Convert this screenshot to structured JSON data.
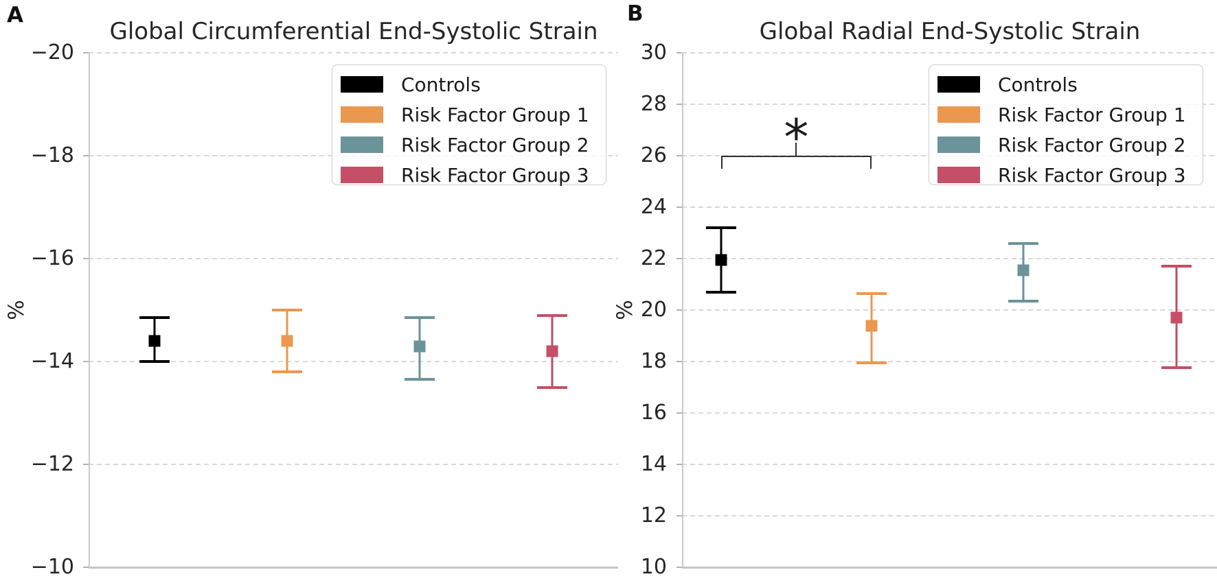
{
  "legend": {
    "entries": [
      {
        "label": "Controls",
        "color": "#000000"
      },
      {
        "label": "Risk Factor Group 1",
        "color": "#EA9850"
      },
      {
        "label": "Risk Factor Group 2",
        "color": "#6B939A"
      },
      {
        "label": "Risk Factor Group 3",
        "color": "#C44F66"
      }
    ]
  },
  "style_colors": {
    "grid": "#d9d9d9",
    "spine": "#c6c6c6",
    "text": "#262626",
    "significance": "#2f2f2f"
  },
  "chart_data": [
    {
      "type": "scatter",
      "panel_label": "A",
      "title": "Global Circumferential End-Systolic Strain",
      "xlabel": "",
      "ylabel": "%",
      "ylim": [
        -20,
        -10
      ],
      "y_inverted": true,
      "grid": true,
      "legend_position": "upper right",
      "yticks": [
        {
          "value": -20,
          "label": "−20"
        },
        {
          "value": -18,
          "label": "−18"
        },
        {
          "value": -16,
          "label": "−16"
        },
        {
          "value": -14,
          "label": "−14"
        },
        {
          "value": -12,
          "label": "−12"
        },
        {
          "value": -10,
          "label": "−10"
        }
      ],
      "series": [
        {
          "name": "Controls",
          "color": "#000000",
          "x": 1,
          "x_frac": 0.125,
          "mean": -14.4,
          "ci": [
            -14.85,
            -14.0
          ]
        },
        {
          "name": "Risk Factor Group 1",
          "color": "#EA9850",
          "x": 2,
          "x_frac": 0.375,
          "mean": -14.4,
          "ci": [
            -15.0,
            -13.8
          ]
        },
        {
          "name": "Risk Factor Group 2",
          "color": "#6B939A",
          "x": 3,
          "x_frac": 0.625,
          "mean": -14.3,
          "ci": [
            -14.85,
            -13.65
          ]
        },
        {
          "name": "Risk Factor Group 3",
          "color": "#C44F66",
          "x": 4,
          "x_frac": 0.875,
          "mean": -14.2,
          "ci": [
            -14.9,
            -13.5
          ]
        }
      ]
    },
    {
      "type": "scatter",
      "panel_label": "B",
      "title": "Global Radial End-Systolic Strain",
      "xlabel": "",
      "ylabel": "%",
      "ylim": [
        10,
        30
      ],
      "y_inverted": false,
      "grid": true,
      "legend_position": "upper right",
      "yticks": [
        {
          "value": 30,
          "label": "30"
        },
        {
          "value": 28,
          "label": "28"
        },
        {
          "value": 26,
          "label": "26"
        },
        {
          "value": 24,
          "label": "24"
        },
        {
          "value": 22,
          "label": "22"
        },
        {
          "value": 20,
          "label": "20"
        },
        {
          "value": 18,
          "label": "18"
        },
        {
          "value": 16,
          "label": "16"
        },
        {
          "value": 14,
          "label": "14"
        },
        {
          "value": 12,
          "label": "12"
        },
        {
          "value": 10,
          "label": "10"
        }
      ],
      "series": [
        {
          "name": "Controls",
          "color": "#000000",
          "x": 1,
          "x_frac": 0.073,
          "mean": 21.95,
          "ci": [
            20.7,
            23.2
          ]
        },
        {
          "name": "Risk Factor Group 1",
          "color": "#EA9850",
          "x": 2,
          "x_frac": 0.354,
          "mean": 19.4,
          "ci": [
            17.95,
            20.65
          ]
        },
        {
          "name": "Risk Factor Group 2",
          "color": "#6B939A",
          "x": 3,
          "x_frac": 0.638,
          "mean": 21.55,
          "ci": [
            20.35,
            22.6
          ]
        },
        {
          "name": "Risk Factor Group 3",
          "color": "#C44F66",
          "x": 4,
          "x_frac": 0.924,
          "mean": 19.7,
          "ci": [
            17.75,
            21.7
          ]
        }
      ],
      "significance": {
        "symbol": "*",
        "between": [
          "Controls",
          "Risk Factor Group 1"
        ],
        "bar_y": 26.0,
        "end_drop_to": 25.5,
        "center_tick_to": 26.5,
        "symbol_y": 27.3
      }
    }
  ]
}
